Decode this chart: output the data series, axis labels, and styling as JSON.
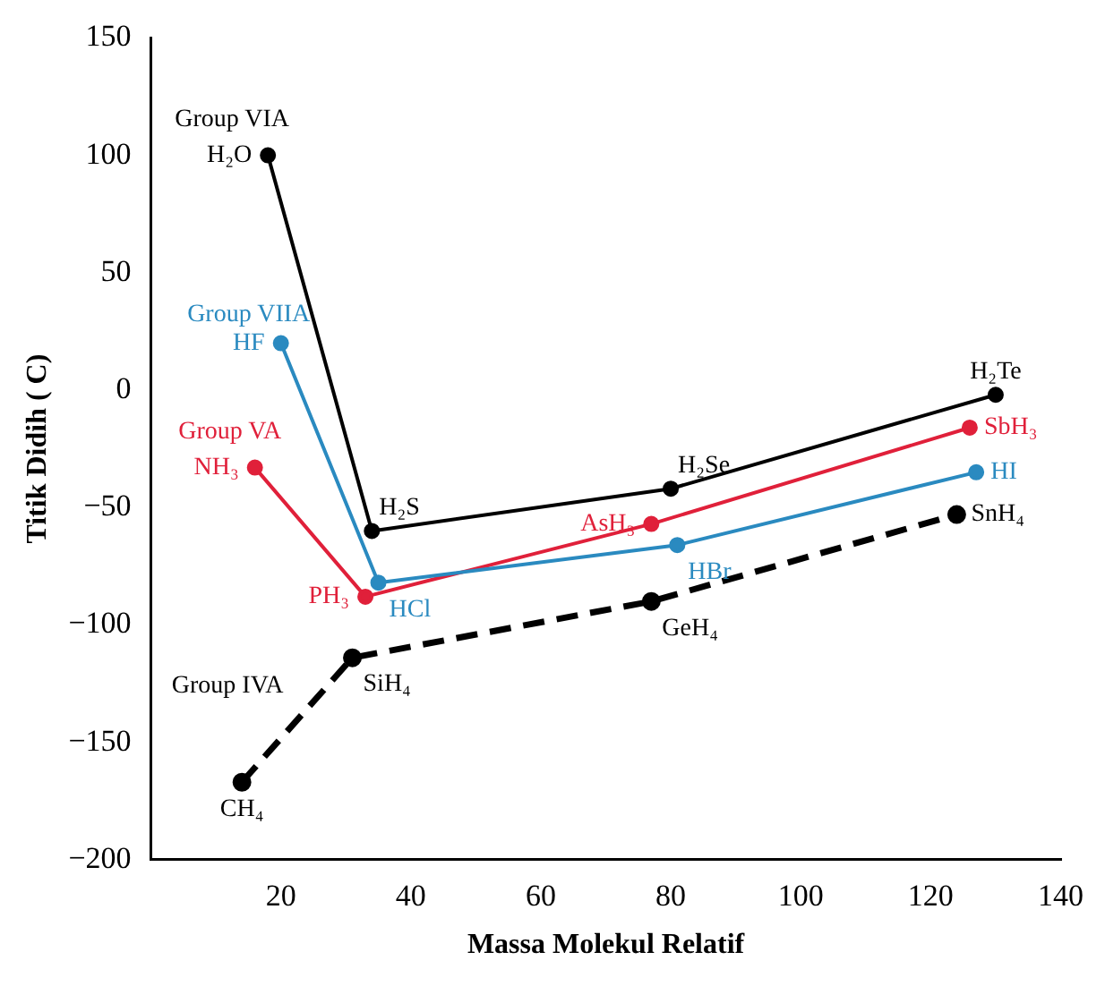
{
  "chart_data": {
    "type": "line",
    "xlabel": "Massa Molekul Relatif",
    "ylabel": "Titik Didih ( C)",
    "xlim": [
      0,
      140
    ],
    "xticks": [
      20,
      40,
      60,
      80,
      100,
      120,
      140
    ],
    "ylim": [
      -200,
      150
    ],
    "yticks": [
      150,
      100,
      50,
      0,
      {
        "value": -50,
        "label": "−50"
      },
      {
        "value": -100,
        "label": "−100"
      },
      {
        "value": -150,
        "label": "−150"
      },
      {
        "value": -200,
        "label": "−200"
      }
    ],
    "marker": "circle",
    "legend": false,
    "grid": false,
    "series": [
      {
        "name": "Group VIA",
        "color": "#000000",
        "x": [
          18,
          34,
          80,
          130
        ],
        "values": [
          100,
          -60,
          -42,
          -2
        ]
      },
      {
        "name": "Group VIIA",
        "color": "#2a8ac0",
        "x": [
          20,
          35,
          81,
          127
        ],
        "values": [
          20,
          -82,
          -66,
          -35
        ]
      },
      {
        "name": "Group VA",
        "color": "#e0203a",
        "x": [
          16,
          33,
          77,
          126
        ],
        "values": [
          -33,
          -88,
          -57,
          -16
        ]
      },
      {
        "name": "Group IVA",
        "color": "#000000",
        "line_style": "dashed",
        "x": [
          14,
          31,
          77,
          124
        ],
        "values": [
          -167,
          -114,
          -90,
          -53
        ]
      }
    ],
    "annotations": [
      {
        "text": "H₂O",
        "x": 18,
        "y": 100
      },
      {
        "text": "H₂S",
        "x": 34,
        "y": -60
      },
      {
        "text": "H₂Se",
        "x": 80,
        "y": -42
      },
      {
        "text": "H₂Te",
        "x": 130,
        "y": -2
      },
      {
        "text": "HF",
        "x": 20,
        "y": 20
      },
      {
        "text": "HCl",
        "x": 35,
        "y": -82
      },
      {
        "text": "HBr",
        "x": 81,
        "y": -66
      },
      {
        "text": "HI",
        "x": 127,
        "y": -35
      },
      {
        "text": "NH₃",
        "x": 16,
        "y": -33
      },
      {
        "text": "PH₃",
        "x": 33,
        "y": -88
      },
      {
        "text": "AsH₃",
        "x": 77,
        "y": -57
      },
      {
        "text": "SbH₃",
        "x": 126,
        "y": -16
      },
      {
        "text": "CH₄",
        "x": 14,
        "y": -167
      },
      {
        "text": "SiH₄",
        "x": 31,
        "y": -114
      },
      {
        "text": "GeH₄",
        "x": 77,
        "y": -90
      },
      {
        "text": "SnH₄",
        "x": 124,
        "y": -53
      }
    ]
  }
}
